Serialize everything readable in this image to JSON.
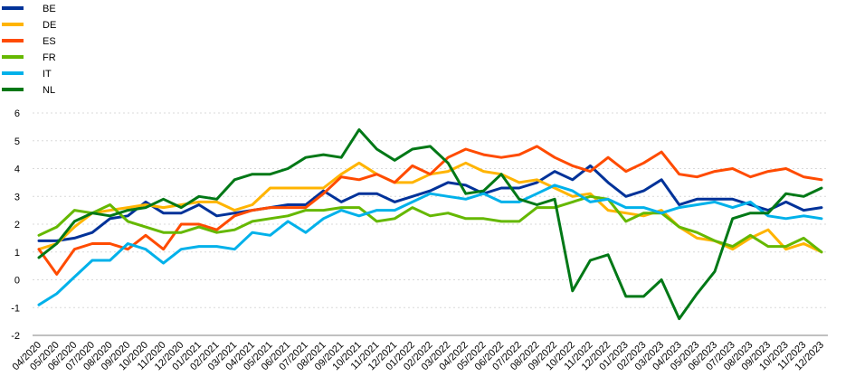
{
  "chart_data": {
    "type": "line",
    "title": "",
    "xlabel": "",
    "ylabel": "",
    "ylim": [
      -2,
      6
    ],
    "yticks": [
      -2,
      -1,
      0,
      1,
      2,
      3,
      4,
      5,
      6
    ],
    "grid": true,
    "legend_position": "top-left",
    "categories": [
      "04/2020",
      "05/2020",
      "06/2020",
      "07/2020",
      "08/2020",
      "09/2020",
      "10/2020",
      "11/2020",
      "12/2020",
      "01/2021",
      "02/2021",
      "03/2021",
      "04/2021",
      "05/2021",
      "06/2021",
      "07/2021",
      "08/2021",
      "09/2021",
      "10/2021",
      "11/2021",
      "12/2021",
      "01/2022",
      "02/2022",
      "03/2022",
      "04/2022",
      "05/2022",
      "06/2022",
      "07/2022",
      "08/2022",
      "09/2022",
      "10/2022",
      "11/2022",
      "12/2022",
      "01/2023",
      "02/2023",
      "03/2023",
      "04/2023",
      "05/2023",
      "06/2023",
      "07/2023",
      "08/2023",
      "09/2023",
      "10/2023",
      "11/2023",
      "12/2023"
    ],
    "x": [
      "04/2020",
      "",
      "05/2020",
      "",
      "06/2020",
      "",
      "07/2020",
      "",
      "08/2020",
      "",
      "09/2020",
      "",
      "10/2020",
      "",
      "11/2020",
      "",
      "12/2020",
      "",
      "01/2021",
      "",
      "02/2021",
      "",
      "03/2021",
      "",
      "04/2021",
      "",
      "05/2021",
      "",
      "06/2021",
      "",
      "07/2021",
      "",
      "08/2021",
      "",
      "09/2021",
      "",
      "10/2021",
      "",
      "11/2021",
      "",
      "12/2021",
      "",
      "01/2022",
      "",
      "02/2022",
      "",
      "03/2022",
      "",
      "04/2022",
      "",
      "05/2022",
      "",
      "06/2022",
      "",
      "07/2022",
      "",
      "08/2022",
      "",
      "09/2022",
      "",
      "10/2022",
      "",
      "11/2022",
      "",
      "12/2022",
      "",
      "01/2023",
      "",
      "02/2023",
      "",
      "03/2023",
      "",
      "04/2023",
      "",
      "05/2023",
      "",
      "06/2023",
      "",
      "07/2023",
      "",
      "08/2023",
      "",
      "09/2023",
      "",
      "10/2023",
      "",
      "11/2023",
      "",
      "12/2023"
    ],
    "series": [
      {
        "name": "BE",
        "color": "#003299",
        "values": [
          1.4,
          1.4,
          1.5,
          1.7,
          2.2,
          2.3,
          2.8,
          2.4,
          2.4,
          2.7,
          2.3,
          2.4,
          2.5,
          2.6,
          2.7,
          2.7,
          3.2,
          2.8,
          3.1,
          3.1,
          2.8,
          3.0,
          3.2,
          3.5,
          3.4,
          3.1,
          3.3,
          3.3,
          3.5,
          3.9,
          3.6,
          4.1,
          3.5,
          3.0,
          3.2,
          3.6,
          2.7,
          2.9,
          2.9,
          2.9,
          2.7,
          2.5,
          2.8,
          2.5,
          2.6
        ]
      },
      {
        "name": "DE",
        "color": "#FFB400",
        "values": [
          1.1,
          1.3,
          1.9,
          2.4,
          2.5,
          2.6,
          2.7,
          2.6,
          2.7,
          2.8,
          2.8,
          2.5,
          2.7,
          3.3,
          3.3,
          3.3,
          3.3,
          3.8,
          4.2,
          3.8,
          3.5,
          3.5,
          3.8,
          3.9,
          4.2,
          3.9,
          3.8,
          3.5,
          3.6,
          3.3,
          3.0,
          3.1,
          2.5,
          2.4,
          2.3,
          2.5,
          1.9,
          1.5,
          1.4,
          1.1,
          1.5,
          1.8,
          1.1,
          1.3,
          1.0
        ]
      },
      {
        "name": "ES",
        "color": "#FF4B00",
        "values": [
          1.1,
          0.2,
          1.1,
          1.3,
          1.3,
          1.1,
          1.6,
          1.1,
          2.0,
          2.0,
          1.8,
          2.3,
          2.5,
          2.6,
          2.6,
          2.6,
          3.1,
          3.7,
          3.6,
          3.8,
          3.5,
          4.1,
          3.8,
          4.4,
          4.7,
          4.5,
          4.4,
          4.5,
          4.8,
          4.4,
          4.1,
          3.9,
          4.4,
          3.9,
          4.2,
          4.6,
          3.8,
          3.7,
          3.9,
          4.0,
          3.7,
          3.9,
          4.0,
          3.7,
          3.6
        ]
      },
      {
        "name": "FR",
        "color": "#65B800",
        "values": [
          1.6,
          1.9,
          2.5,
          2.4,
          2.7,
          2.1,
          1.9,
          1.7,
          1.7,
          1.9,
          1.7,
          1.8,
          2.1,
          2.2,
          2.3,
          2.5,
          2.5,
          2.6,
          2.6,
          2.1,
          2.2,
          2.6,
          2.3,
          2.4,
          2.2,
          2.2,
          2.1,
          2.1,
          2.6,
          2.6,
          2.8,
          3.0,
          2.9,
          2.1,
          2.4,
          2.4,
          1.9,
          1.7,
          1.4,
          1.2,
          1.6,
          1.2,
          1.2,
          1.5,
          1.0
        ]
      },
      {
        "name": "IT",
        "color": "#00B1EA",
        "values": [
          -0.9,
          -0.5,
          0.1,
          0.7,
          0.7,
          1.3,
          1.1,
          0.6,
          1.1,
          1.2,
          1.2,
          1.1,
          1.7,
          1.6,
          2.1,
          1.7,
          2.2,
          2.5,
          2.3,
          2.5,
          2.5,
          2.8,
          3.1,
          3.0,
          2.9,
          3.1,
          2.8,
          2.8,
          3.1,
          3.4,
          3.2,
          2.8,
          2.9,
          2.6,
          2.6,
          2.4,
          2.6,
          2.7,
          2.8,
          2.6,
          2.8,
          2.3,
          2.2,
          2.3,
          2.2
        ]
      },
      {
        "name": "NL",
        "color": "#007816",
        "values": [
          0.8,
          1.3,
          2.1,
          2.4,
          2.3,
          2.5,
          2.6,
          2.9,
          2.6,
          3.0,
          2.9,
          3.6,
          3.8,
          3.8,
          4.0,
          4.4,
          4.5,
          4.4,
          5.4,
          4.7,
          4.3,
          4.7,
          4.8,
          4.2,
          3.1,
          3.2,
          3.8,
          2.9,
          2.7,
          2.9,
          -0.4,
          0.7,
          0.9,
          -0.6,
          -0.6,
          0.0,
          -1.4,
          -0.5,
          0.3,
          2.2,
          2.4,
          2.4,
          3.1,
          3.0,
          3.3
        ]
      }
    ]
  }
}
